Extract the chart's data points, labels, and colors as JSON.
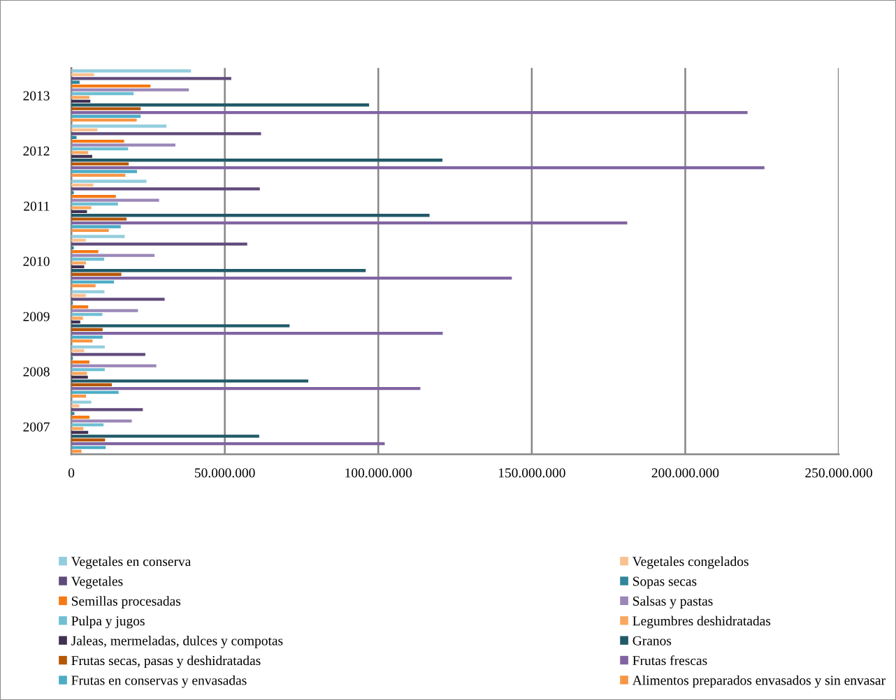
{
  "chart_data": {
    "type": "bar",
    "orientation": "horizontal",
    "categories": [
      "2013",
      "2012",
      "2011",
      "2010",
      "2009",
      "2008",
      "2007"
    ],
    "series": [
      {
        "name": "Vegetales en conserva",
        "color": "#93cddd",
        "values": [
          39000000,
          31000000,
          24500000,
          17400000,
          10800000,
          10900000,
          6500000
        ]
      },
      {
        "name": "Vegetales congelados",
        "color": "#fac090",
        "values": [
          7400000,
          8500000,
          7200000,
          4700000,
          4700000,
          4200000,
          2600000
        ]
      },
      {
        "name": "Vegetales",
        "color": "#604a7b",
        "values": [
          52100000,
          61800000,
          61400000,
          57300000,
          30400000,
          24100000,
          23300000
        ]
      },
      {
        "name": "Sopas secas",
        "color": "#31859c",
        "values": [
          2700000,
          1700000,
          800000,
          800000,
          500000,
          500000,
          1000000
        ]
      },
      {
        "name": "Semillas procesadas",
        "color": "#f57a14",
        "values": [
          25800000,
          17200000,
          14500000,
          8800000,
          5500000,
          5900000,
          5900000
        ]
      },
      {
        "name": "Salsas y pastas",
        "color": "#9b87b8",
        "values": [
          38300000,
          33900000,
          28600000,
          27100000,
          21700000,
          27700000,
          19700000
        ]
      },
      {
        "name": "Pulpa y jugos",
        "color": "#6fbfd3",
        "values": [
          20300000,
          18500000,
          15200000,
          10700000,
          10100000,
          10900000,
          10500000
        ]
      },
      {
        "name": "Legumbres deshidratadas",
        "color": "#f9a861",
        "values": [
          5900000,
          5500000,
          6500000,
          4800000,
          3800000,
          5100000,
          3900000
        ]
      },
      {
        "name": "Jaleas, mermeladas, dulces y compotas",
        "color": "#403152",
        "values": [
          6200000,
          6800000,
          5100000,
          4200000,
          2900000,
          5400000,
          5500000
        ]
      },
      {
        "name": "Granos",
        "color": "#215968",
        "values": [
          97000000,
          120900000,
          116700000,
          95900000,
          71100000,
          77200000,
          61200000
        ]
      },
      {
        "name": "Frutas secas, pasas y deshidratadas",
        "color": "#b65708",
        "values": [
          22600000,
          18700000,
          18000000,
          16300000,
          10200000,
          13200000,
          11000000
        ]
      },
      {
        "name": "Frutas frescas",
        "color": "#8064a2",
        "values": [
          220300000,
          225800000,
          181100000,
          143500000,
          121000000,
          113700000,
          102100000
        ]
      },
      {
        "name": "Frutas en conservas y envasadas",
        "color": "#4bacc6",
        "values": [
          22600000,
          21400000,
          16100000,
          13900000,
          10200000,
          15400000,
          11200000
        ]
      },
      {
        "name": "Alimentos preparados envasados y sin envasar",
        "color": "#f79646",
        "values": [
          21300000,
          17600000,
          12200000,
          7900000,
          6900000,
          4800000,
          3300000
        ]
      }
    ],
    "xlim": [
      0,
      250000000
    ],
    "xticks": [
      0,
      {
        "value": 50000000,
        "label": "50.000.000"
      },
      {
        "value": 100000000,
        "label": "100.000.000"
      },
      {
        "value": 150000000,
        "label": "150.000.000"
      },
      {
        "value": 200000000,
        "label": "200.000.000"
      },
      {
        "value": 250000000,
        "label": "250.000.000"
      }
    ],
    "grid": "x",
    "legend": "bottom"
  }
}
